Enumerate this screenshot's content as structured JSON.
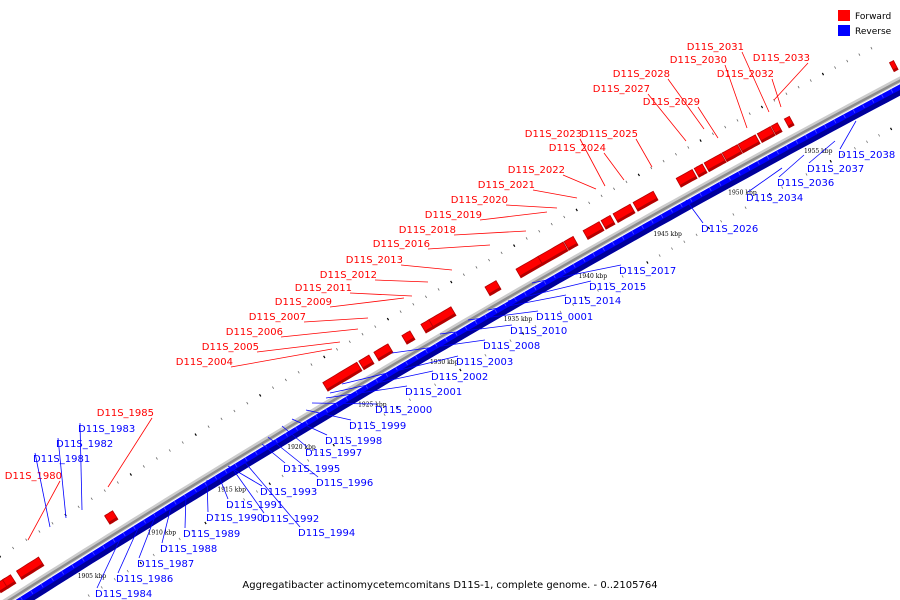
{
  "caption": "Aggregatibacter actinomycetemcomitans D11S-1, complete genome. - 0..2105764",
  "legend": [
    {
      "label": "Forward",
      "color": "#ff0000"
    },
    {
      "label": "Reverse",
      "color": "#0000ff"
    }
  ],
  "colors": {
    "forward": "#ff0000",
    "forward_dark": "#b40000",
    "reverse": "#0000ff",
    "reverse_dark": "#00009a",
    "backbone": "#8c8c8c"
  },
  "ticks": [
    "1905 kbp",
    "1910 kbp",
    "1915 kbp",
    "1920 kbp",
    "1925 kbp",
    "1930 kbp",
    "1935 kbp",
    "1940 kbp",
    "1945 kbp",
    "1950 kbp",
    "1955 kbp"
  ],
  "forward_genes": [
    "D11S_1980",
    "D11S_1985",
    "D11S_2004",
    "D11S_2005",
    "D11S_2006",
    "D11S_2007",
    "D11S_2009",
    "D11S_2011",
    "D11S_2012",
    "D11S_2013",
    "D11S_2016",
    "D11S_2018",
    "D11S_2019",
    "D11S_2020",
    "D11S_2021",
    "D11S_2022",
    "D11S_2023",
    "D11S_2024",
    "D11S_2025",
    "D11S_2027",
    "D11S_2028",
    "D11S_2029",
    "D11S_2030",
    "D11S_2031",
    "D11S_2032",
    "D11S_2033"
  ],
  "reverse_genes": [
    "D11S_1981",
    "D11S_1982",
    "D11S_1983",
    "D11S_1984",
    "D11S_1986",
    "D11S_1987",
    "D11S_1988",
    "D11S_1989",
    "D11S_1990",
    "D11S_1991",
    "D11S_1992",
    "D11S_1993",
    "D11S_1994",
    "D11S_1995",
    "D11S_1996",
    "D11S_1997",
    "D11S_1998",
    "D11S_1999",
    "D11S_2000",
    "D11S_2001",
    "D11S_2002",
    "D11S_2003",
    "D11S_2008",
    "D11S_2010",
    "D11S_0001",
    "D11S_2014",
    "D11S_2015",
    "D11S_2017",
    "D11S_2026",
    "D11S_2034",
    "D11S_2036",
    "D11S_2037",
    "D11S_2038"
  ]
}
